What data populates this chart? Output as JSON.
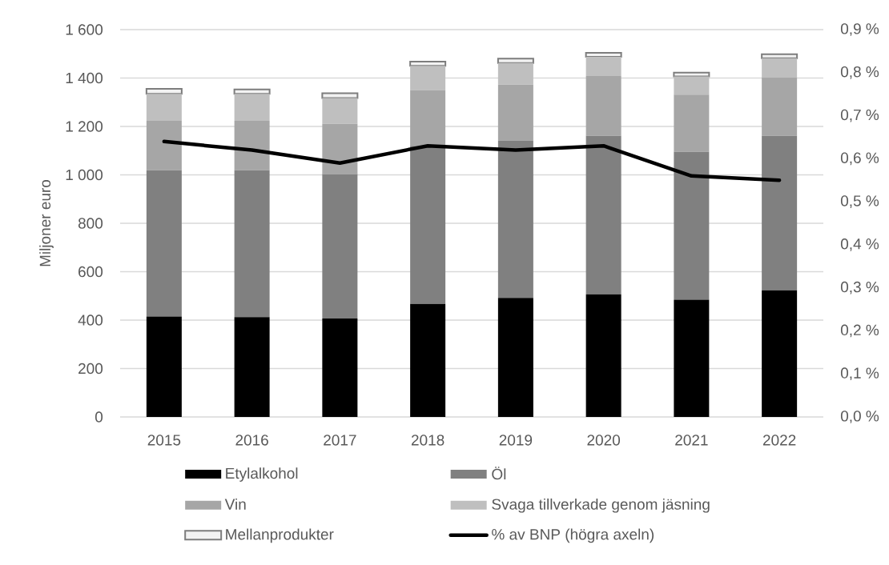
{
  "chart_data": {
    "type": "bar",
    "stacked": true,
    "categories": [
      "2015",
      "2016",
      "2017",
      "2018",
      "2019",
      "2020",
      "2021",
      "2022"
    ],
    "ylabel": "Miljoner euro",
    "ylim": [
      0,
      1600
    ],
    "yticks": [
      0,
      200,
      400,
      600,
      800,
      {
        "value": 1000,
        "label": "1 000"
      },
      {
        "value": 1200,
        "label": "1 200"
      },
      {
        "value": 1400,
        "label": "1 400"
      },
      {
        "value": 1600,
        "label": "1 600"
      }
    ],
    "y2lim": [
      0,
      0.9
    ],
    "y2ticks": [
      {
        "value": 0,
        "label": "0,0 %"
      },
      {
        "value": 0.1,
        "label": "0,1 %"
      },
      {
        "value": 0.2,
        "label": "0,2 %"
      },
      {
        "value": 0.3,
        "label": "0,3 %"
      },
      {
        "value": 0.4,
        "label": "0,4 %"
      },
      {
        "value": 0.5,
        "label": "0,5 %"
      },
      {
        "value": 0.6,
        "label": "0,6 %"
      },
      {
        "value": 0.7,
        "label": "0,7 %"
      },
      {
        "value": 0.8,
        "label": "0,8 %"
      },
      {
        "value": 0.9,
        "label": "0,9 %"
      }
    ],
    "grid": "y",
    "legend": "bottom",
    "series": [
      {
        "name": "Etylalkohol",
        "color": "#000000",
        "values": [
          415,
          412,
          407,
          467,
          492,
          507,
          484,
          523
        ]
      },
      {
        "name": "Öl",
        "color": "#808080",
        "values": [
          604,
          607,
          596,
          653,
          650,
          654,
          611,
          638
        ]
      },
      {
        "name": "Vin",
        "color": "#a6a6a6",
        "values": [
          204,
          204,
          208,
          230,
          231,
          247,
          236,
          242
        ]
      },
      {
        "name": "Svaga tillverkade genom jäsning",
        "color": "#bfbfbf",
        "values": [
          112,
          112,
          106,
          100,
          89,
          80,
          76,
          79
        ]
      },
      {
        "name": "Mellanprodukter",
        "color": "#f2f2f2",
        "values": [
          20,
          18,
          20,
          18,
          18,
          16,
          15,
          16
        ]
      },
      {
        "name": "% av BNP (högra axeln)",
        "type": "line",
        "axis": "y2",
        "color": "#000000",
        "values": [
          0.64,
          0.62,
          0.59,
          0.63,
          0.62,
          0.63,
          0.56,
          0.55
        ]
      }
    ]
  }
}
